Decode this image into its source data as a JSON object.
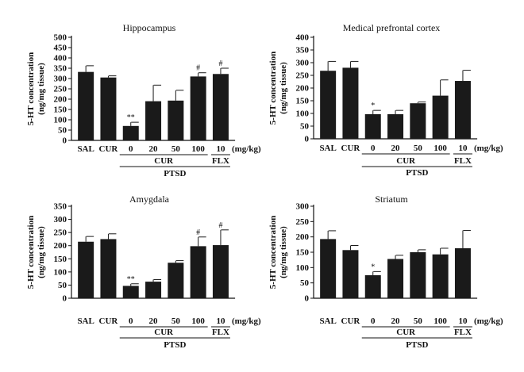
{
  "chart_data": [
    {
      "type": "bar",
      "title": "Hippocampus",
      "ylabel": "5-HT concentration",
      "ylabel_unit": "(ng/mg tissue)",
      "categories": [
        "SAL",
        "CUR",
        "0",
        "20",
        "50",
        "100",
        "10"
      ],
      "values": [
        332,
        305,
        70,
        190,
        193,
        310,
        322
      ],
      "errors": [
        30,
        8,
        18,
        78,
        50,
        18,
        28
      ],
      "significance": [
        "",
        "",
        "**",
        "",
        "",
        "#",
        "#"
      ],
      "ylim": [
        0,
        500
      ],
      "yticks": [
        0,
        50,
        100,
        150,
        200,
        250,
        300,
        350,
        400,
        450,
        500
      ],
      "unit_label": "(mg/kg)",
      "group_cur": "CUR",
      "group_ptsd": "PTSD",
      "group_flx": "FLX"
    },
    {
      "type": "bar",
      "title": "Medical prefrontal cortex",
      "ylabel": "5-HT concentration",
      "ylabel_unit": "(ng/mg tissue)",
      "categories": [
        "SAL",
        "CUR",
        "0",
        "20",
        "50",
        "100",
        "10"
      ],
      "values": [
        268,
        280,
        97,
        97,
        140,
        170,
        228
      ],
      "errors": [
        37,
        25,
        15,
        15,
        5,
        62,
        42
      ],
      "significance": [
        "",
        "",
        "*",
        "",
        "",
        "",
        ""
      ],
      "ylim": [
        0,
        400
      ],
      "yticks": [
        0,
        50,
        100,
        150,
        200,
        250,
        300,
        350,
        400
      ],
      "unit_label": "(mg/kg)",
      "group_cur": "CUR",
      "group_ptsd": "PTSD",
      "group_flx": "FLX"
    },
    {
      "type": "bar",
      "title": "Amygdala",
      "ylabel": "5-HT concentration",
      "ylabel_unit": "(ng/mg tissue)",
      "categories": [
        "SAL",
        "CUR",
        "0",
        "20",
        "50",
        "100",
        "10"
      ],
      "values": [
        215,
        225,
        47,
        63,
        135,
        198,
        202
      ],
      "errors": [
        20,
        20,
        8,
        8,
        8,
        35,
        58
      ],
      "significance": [
        "",
        "",
        "**",
        "",
        "",
        "#",
        "#"
      ],
      "ylim": [
        0,
        350
      ],
      "yticks": [
        0,
        50,
        100,
        150,
        200,
        250,
        300,
        350
      ],
      "unit_label": "(mg/kg)",
      "group_cur": "CUR",
      "group_ptsd": "PTSD",
      "group_flx": "FLX"
    },
    {
      "type": "bar",
      "title": "Striatum",
      "ylabel": "5-HT concentration",
      "ylabel_unit": "(ng/mg tissue)",
      "categories": [
        "SAL",
        "CUR",
        "0",
        "20",
        "50",
        "100",
        "10"
      ],
      "values": [
        193,
        157,
        75,
        128,
        150,
        143,
        163
      ],
      "errors": [
        27,
        15,
        12,
        12,
        8,
        20,
        58
      ],
      "significance": [
        "",
        "",
        "*",
        "",
        "",
        "",
        ""
      ],
      "ylim": [
        0,
        300
      ],
      "yticks": [
        0,
        50,
        100,
        150,
        200,
        250,
        300
      ],
      "unit_label": "(mg/kg)",
      "group_cur": "CUR",
      "group_ptsd": "PTSD",
      "group_flx": "FLX"
    }
  ]
}
